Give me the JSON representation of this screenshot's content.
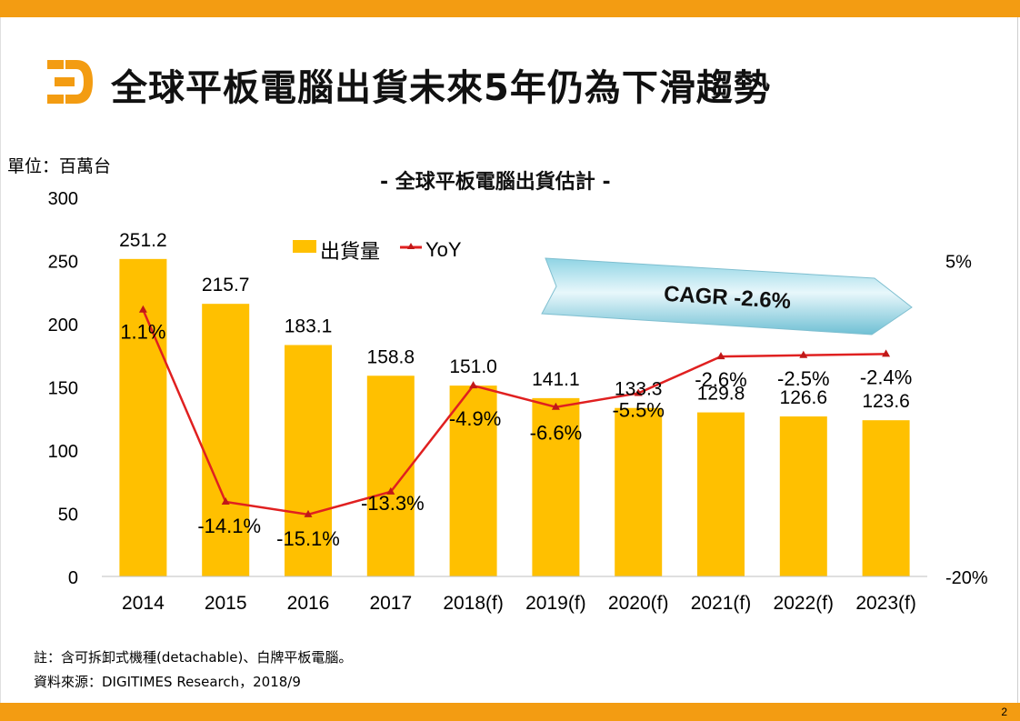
{
  "page": {
    "number": "2"
  },
  "header": {
    "title": "全球平板電腦出貨未來5年仍為下滑趨勢"
  },
  "chart_header": {
    "unit": "單位：百萬台",
    "title": "- 全球平板電腦出貨估計 -"
  },
  "footnotes": {
    "note": "註：含可拆卸式機種(detachable)、白牌平板電腦。",
    "source": "資料來源：DIGITIMES Research，2018/9"
  },
  "colors": {
    "accent": "#F39C12",
    "bar": "#FFC000",
    "line": "#E02020",
    "cagr_fill": "#D4F0F7",
    "cagr_dark": "#6FC0D4"
  },
  "chart_data": {
    "type": "bar",
    "title": "- 全球平板電腦出貨估計 -",
    "categories": [
      "2014",
      "2015",
      "2016",
      "2017",
      "2018(f)",
      "2019(f)",
      "2020(f)",
      "2021(f)",
      "2022(f)",
      "2023(f)"
    ],
    "series": [
      {
        "name": "出貨量",
        "type": "bar",
        "axis": "left",
        "values": [
          251.2,
          215.7,
          183.1,
          158.8,
          151.0,
          141.1,
          133.3,
          129.8,
          126.6,
          123.6
        ],
        "labels": [
          "251.2",
          "215.7",
          "183.1",
          "158.8",
          "151.0",
          "141.1",
          "133.3",
          "129.8",
          "126.6",
          "123.6"
        ]
      },
      {
        "name": "YoY",
        "type": "line",
        "axis": "right",
        "values": [
          1.1,
          -14.1,
          -15.1,
          -13.3,
          -4.9,
          -6.6,
          -5.5,
          -2.6,
          -2.5,
          -2.4
        ],
        "labels": [
          "1.1%",
          "-14.1%",
          "-15.1%",
          "-13.3%",
          "-4.9%",
          "-6.6%",
          "-5.5%",
          "-2.6%",
          "-2.5%",
          "-2.4%"
        ]
      }
    ],
    "y_left": {
      "min": 0,
      "max": 300,
      "ticks": [
        "0",
        "50",
        "100",
        "150",
        "200",
        "250",
        "300"
      ]
    },
    "y_right": {
      "min": -20,
      "max": 10,
      "ticks": [
        {
          "value": -20,
          "label": "-20%"
        },
        {
          "value": 5,
          "label": "5%"
        }
      ]
    },
    "legend": {
      "position": "top-center",
      "items": [
        "出貨量",
        "YoY"
      ]
    },
    "annotation": {
      "text": "CAGR -2.6%"
    }
  }
}
